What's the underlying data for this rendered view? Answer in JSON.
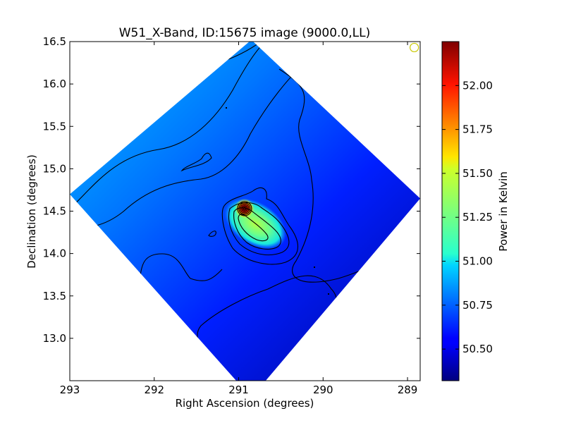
{
  "chart_data": {
    "type": "heatmap",
    "title": "W51_X-Band, ID:15675 image (9000.0,LL)",
    "xlabel": "Right Ascension (degrees)",
    "ylabel": "Declination (degrees)",
    "xlim": [
      293.0,
      288.85
    ],
    "ylim": [
      12.5,
      16.5
    ],
    "x_ticks": [
      293,
      292,
      291,
      290,
      289
    ],
    "x_tick_labels": [
      "293",
      "292",
      "291",
      "290",
      "289"
    ],
    "y_ticks": [
      13.0,
      13.5,
      14.0,
      14.5,
      15.0,
      15.5,
      16.0,
      16.5
    ],
    "y_tick_labels": [
      "13.0",
      "13.5",
      "14.0",
      "14.5",
      "15.0",
      "15.5",
      "16.0",
      "16.5"
    ],
    "colorbar": {
      "label": "Power in Kelvin",
      "range": [
        50.32,
        52.25
      ],
      "ticks": [
        50.5,
        50.75,
        51.0,
        51.25,
        51.5,
        51.75,
        52.0
      ],
      "tick_labels": [
        "50.50",
        "50.75",
        "51.00",
        "51.25",
        "51.50",
        "51.75",
        "52.00"
      ],
      "colormap": "jet"
    },
    "map_extent": {
      "north_corner": [
        290.85,
        16.52
      ],
      "east_corner": [
        293.0,
        14.7
      ],
      "south_corner": [
        290.85,
        12.3
      ],
      "west_corner": [
        288.85,
        14.65
      ]
    },
    "peak": {
      "ra": 290.93,
      "dec": 14.53,
      "value": 52.25
    },
    "secondary_lobe": {
      "ra": 290.8,
      "dec": 14.35,
      "value": 51.4
    },
    "beam_marker": {
      "ra": 288.92,
      "dec": 16.43
    },
    "background_levels": {
      "northeast": 50.95,
      "center": 50.62,
      "southwest": 50.35
    }
  }
}
